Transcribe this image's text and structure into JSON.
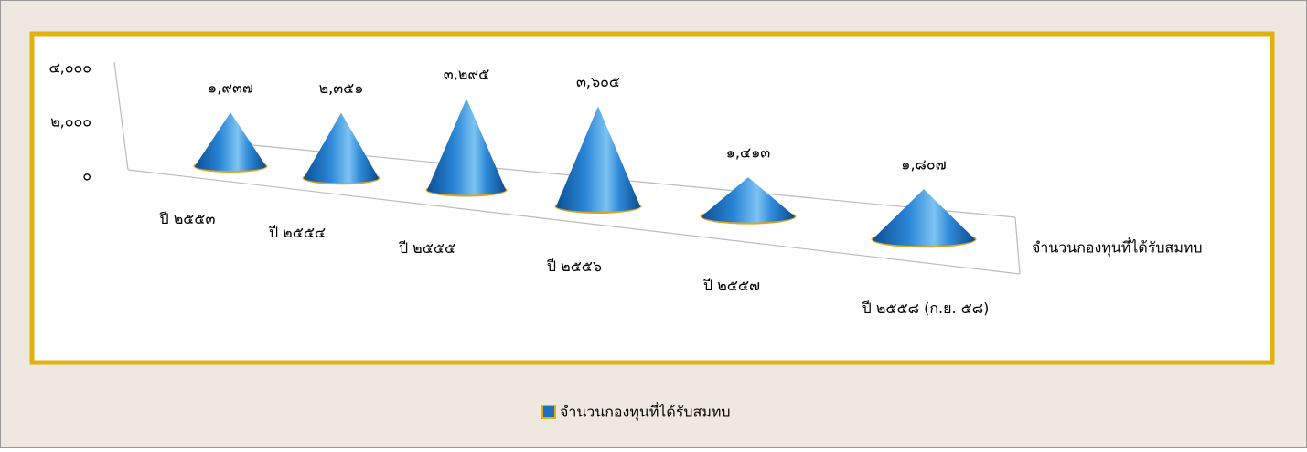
{
  "chart_data": {
    "type": "cone3d",
    "categories": [
      "ปี ๒๕๕๓",
      "ปี ๒๕๕๔",
      "ปี ๒๕๕๕",
      "ปี ๒๕๕๖",
      "ปี ๒๕๕๗",
      "ปี ๒๕๕๘ (ก.ย. ๕๘)"
    ],
    "series": [
      {
        "name": "จำนวนกองทุนที่ได้รับสมทบ",
        "color": "#1f6fbf",
        "values": [
          1937,
          2351,
          3295,
          3605,
          1413,
          1807
        ],
        "value_labels": [
          "๑,๙๓๗",
          "๒,๓๕๑",
          "๓,๒๙๕",
          "๓,๖๐๕",
          "๑,๔๑๓",
          "๑,๘๐๗"
        ]
      }
    ],
    "ylim": [
      0,
      4000
    ],
    "yticks": [
      {
        "value": 0,
        "label": "๐"
      },
      {
        "value": 2000,
        "label": "๒,๐๐๐"
      },
      {
        "value": 4000,
        "label": "๔,๐๐๐"
      }
    ],
    "legend": "bottom"
  }
}
